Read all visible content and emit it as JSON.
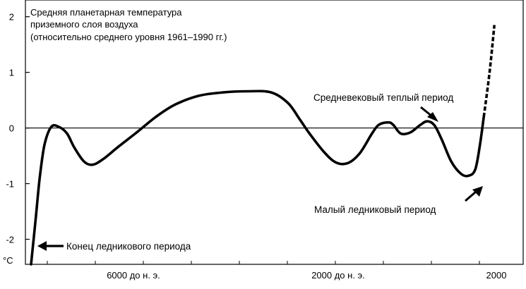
{
  "chart_data": {
    "type": "line",
    "title_lines": [
      "Средняя планетарная температура",
      "приземного слоя воздуха",
      "(относительно среднего уровня 1961–1990 гг.)"
    ],
    "y_unit": "°C",
    "yticks": [
      {
        "value": 2,
        "label": "2"
      },
      {
        "value": 1,
        "label": "1"
      },
      {
        "value": 0,
        "label": "0"
      },
      {
        "value": -1,
        "label": "-1"
      },
      {
        "value": -2,
        "label": "-2"
      }
    ],
    "xtick_labels": [
      "6000 до н. э.",
      "2000 до н. э.",
      "2000"
    ],
    "ylim": [
      -2.45,
      2.3
    ],
    "reference_line": 0,
    "series": [
      {
        "points": [
          [
            0.0,
            -2.45
          ],
          [
            0.01,
            -1.6
          ],
          [
            0.018,
            -0.9
          ],
          [
            0.028,
            -0.3
          ],
          [
            0.042,
            0.02
          ],
          [
            0.058,
            0.02
          ],
          [
            0.075,
            -0.1
          ],
          [
            0.09,
            -0.35
          ],
          [
            0.11,
            -0.6
          ],
          [
            0.128,
            -0.66
          ],
          [
            0.15,
            -0.56
          ],
          [
            0.18,
            -0.35
          ],
          [
            0.22,
            -0.08
          ],
          [
            0.26,
            0.2
          ],
          [
            0.3,
            0.42
          ],
          [
            0.35,
            0.58
          ],
          [
            0.4,
            0.64
          ],
          [
            0.45,
            0.66
          ],
          [
            0.5,
            0.64
          ],
          [
            0.535,
            0.45
          ],
          [
            0.56,
            0.15
          ],
          [
            0.58,
            -0.1
          ],
          [
            0.61,
            -0.43
          ],
          [
            0.635,
            -0.62
          ],
          [
            0.66,
            -0.63
          ],
          [
            0.685,
            -0.45
          ],
          [
            0.71,
            -0.1
          ],
          [
            0.725,
            0.06
          ],
          [
            0.745,
            0.1
          ],
          [
            0.755,
            0.05
          ],
          [
            0.77,
            -0.1
          ],
          [
            0.79,
            -0.08
          ],
          [
            0.81,
            0.05
          ],
          [
            0.825,
            0.12
          ],
          [
            0.84,
            0.05
          ],
          [
            0.855,
            -0.2
          ],
          [
            0.875,
            -0.6
          ],
          [
            0.895,
            -0.82
          ],
          [
            0.91,
            -0.86
          ],
          [
            0.925,
            -0.75
          ],
          [
            0.935,
            -0.3
          ],
          [
            0.943,
            0.2
          ]
        ],
        "dashed_points": [
          [
            0.943,
            0.2
          ],
          [
            0.955,
            1.0
          ],
          [
            0.965,
            1.85
          ]
        ]
      }
    ],
    "annotations": [
      "Средневековый теплый период",
      "Малый ледниковый период",
      "Конец ледникового периода"
    ]
  }
}
